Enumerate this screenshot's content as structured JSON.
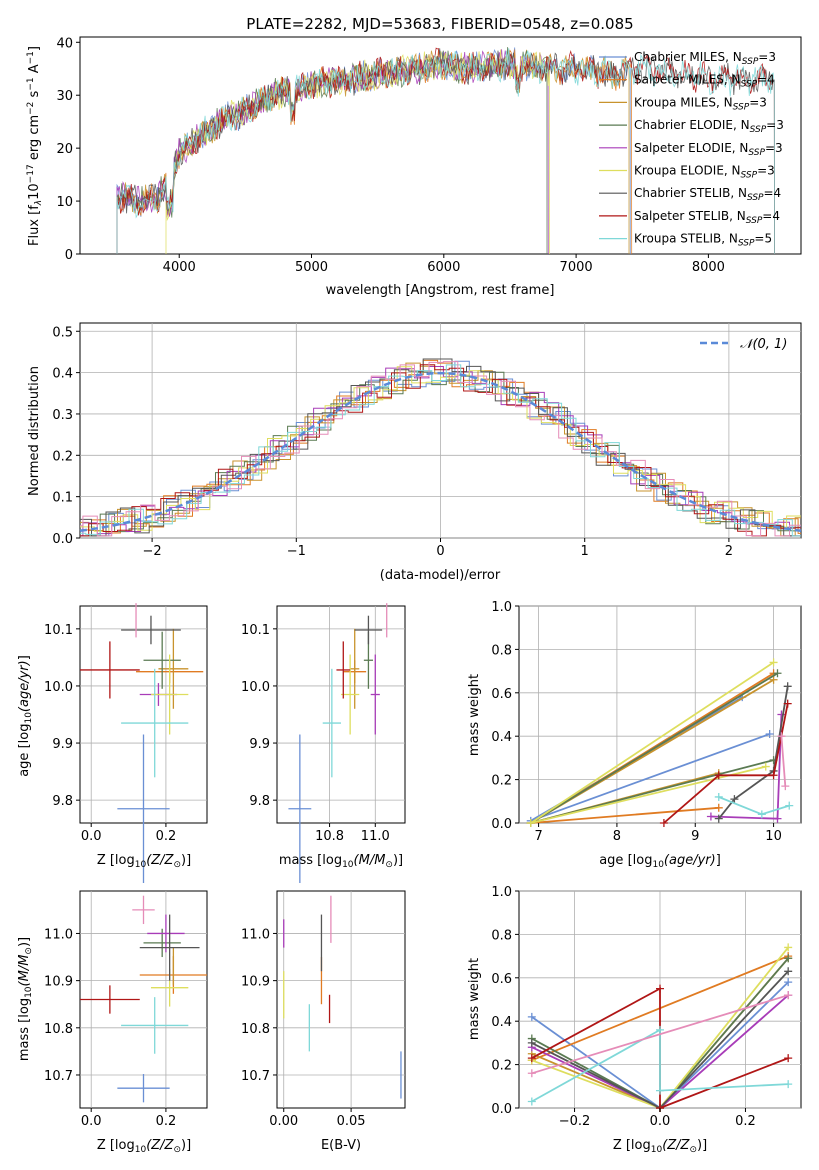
{
  "title": "PLATE=2282, MJD=53683, FIBERID=0548, z=0.085",
  "colors": {
    "Chabrier MILES": "#6a8fd4",
    "Salpeter MILES": "#e07b22",
    "Kroupa MILES": "#c8932d",
    "Chabrier ELODIE": "#5a7a52",
    "Salpeter ELODIE": "#a83cb8",
    "Kroupa ELODIE": "#dede5e",
    "Chabrier STELIB": "#555555",
    "Salpeter STELIB": "#b01616",
    "Kroupa STELIB": "#7fd8d8",
    "pink": "#e58cb8",
    "gauss": "#5a8ad8"
  },
  "legend_spectrum": [
    {
      "name": "Chabrier MILES, N",
      "sub": "SSP",
      "tail": "=3",
      "color": "#6a8fd4"
    },
    {
      "name": "Salpeter MILES, N",
      "sub": "SSP",
      "tail": "=4",
      "color": "#e07b22"
    },
    {
      "name": "Kroupa MILES, N",
      "sub": "SSP",
      "tail": "=3",
      "color": "#c8932d"
    },
    {
      "name": "Chabrier ELODIE, N",
      "sub": "SSP",
      "tail": "=3",
      "color": "#5a7a52"
    },
    {
      "name": "Salpeter ELODIE, N",
      "sub": "SSP",
      "tail": "=3",
      "color": "#a83cb8"
    },
    {
      "name": "Kroupa ELODIE, N",
      "sub": "SSP",
      "tail": "=3",
      "color": "#dede5e"
    },
    {
      "name": "Chabrier STELIB, N",
      "sub": "SSP",
      "tail": "=4",
      "color": "#555555"
    },
    {
      "name": "Salpeter STELIB, N",
      "sub": "SSP",
      "tail": "=4",
      "color": "#b01616"
    },
    {
      "name": "Kroupa STELIB, N",
      "sub": "SSP",
      "tail": "=5",
      "color": "#7fd8d8"
    }
  ],
  "labels": {
    "spec_x": "wavelength [Angstrom, rest frame]",
    "spec_y": "Flux [f",
    "resid_x": "(data-model)/error",
    "resid_y": "Normed distribution",
    "resid_legend": "𝒩(0, 1)",
    "z_axis": "Z [log",
    "age_axis": "age  [log",
    "mass_axis": "mass [log",
    "ebv_axis": "E(B-V)",
    "mw_axis": "mass weight"
  },
  "chart_data": [
    {
      "type": "line",
      "title": "PLATE=2282, MJD=53683, FIBERID=0548, z=0.085",
      "xlabel": "wavelength [Angstrom, rest frame]",
      "ylabel": "Flux [fλ 10^-17 erg cm^-2 s^-1 A^-1]",
      "xlim": [
        3250,
        8700
      ],
      "ylim": [
        0,
        41
      ],
      "xticks": [
        4000,
        5000,
        6000,
        7000,
        8000
      ],
      "yticks": [
        0,
        10,
        20,
        30,
        40
      ],
      "spectrum_knots": {
        "x": [
          3500,
          3700,
          3850,
          3900,
          4000,
          4100,
          4300,
          4500,
          4700,
          5000,
          5300,
          5500,
          5800,
          6000,
          6200,
          6500,
          6800,
          7000,
          7300,
          7500,
          7800,
          8000,
          8300,
          8500
        ],
        "y": [
          11,
          10,
          11,
          13,
          19,
          21,
          25,
          27,
          30,
          32,
          33,
          34,
          35,
          36,
          35,
          36,
          35,
          35,
          34,
          35,
          34,
          33,
          33,
          33
        ]
      },
      "series_cutoffs": {
        "Chabrier MILES": [
          3530,
          7410
        ],
        "Salpeter MILES": [
          3530,
          7420
        ],
        "Kroupa MILES": [
          3530,
          7400
        ],
        "Chabrier ELODIE": [
          3530,
          6780
        ],
        "Salpeter ELODIE": [
          3530,
          6790
        ],
        "Kroupa ELODIE": [
          3900,
          6800
        ],
        "Chabrier STELIB": [
          3530,
          8500
        ],
        "Salpeter STELIB": [
          3530,
          8500
        ],
        "Kroupa STELIB": [
          3530,
          8500
        ]
      },
      "legend": "upper right"
    },
    {
      "type": "bar",
      "subtype": "step-histogram",
      "xlabel": "(data-model)/error",
      "ylabel": "Normed distribution",
      "xlim": [
        -2.5,
        2.5
      ],
      "ylim": [
        0,
        0.52
      ],
      "xticks": [
        -2,
        -1,
        0,
        1,
        2
      ],
      "yticks": [
        0.0,
        0.1,
        0.2,
        0.3,
        0.4,
        0.5
      ],
      "grid": true,
      "reference": {
        "name": "𝒩(0, 1)",
        "mean": 0,
        "sigma": 1
      },
      "legend": "upper right"
    },
    {
      "type": "scatter",
      "subtype": "errorbar",
      "xlabel": "Z [log10(Z/Z⊙)]",
      "ylabel": "age  [log10(age/yr)]",
      "xlim": [
        -0.03,
        0.31
      ],
      "ylim": [
        9.76,
        10.14
      ],
      "xticks": [
        0.0,
        0.2
      ],
      "yticks": [
        9.8,
        9.9,
        10.0,
        10.1
      ],
      "points": [
        {
          "series": "Chabrier MILES",
          "x": 0.14,
          "y": 9.785,
          "xerr": 0.07,
          "yerr": 0.13
        },
        {
          "series": "Salpeter MILES",
          "x": 0.21,
          "y": 10.025,
          "xerr": 0.09,
          "yerr": 0.02
        },
        {
          "series": "Kroupa MILES",
          "x": 0.22,
          "y": 10.03,
          "xerr": 0.04,
          "yerr": 0.07
        },
        {
          "series": "Chabrier ELODIE",
          "x": 0.19,
          "y": 10.045,
          "xerr": 0.05,
          "yerr": 0.05
        },
        {
          "series": "Salpeter ELODIE",
          "x": 0.18,
          "y": 9.985,
          "xerr": 0.05,
          "yerr": 0.02
        },
        {
          "series": "Kroupa ELODIE",
          "x": 0.21,
          "y": 9.985,
          "xerr": 0.05,
          "yerr": 0.07
        },
        {
          "series": "Chabrier STELIB",
          "x": 0.16,
          "y": 10.098,
          "xerr": 0.08,
          "yerr": 0.025
        },
        {
          "series": "Salpeter STELIB",
          "x": 0.05,
          "y": 10.028,
          "xerr": 0.08,
          "yerr": 0.05
        },
        {
          "series": "Kroupa STELIB",
          "x": 0.17,
          "y": 9.935,
          "xerr": 0.09,
          "yerr": 0.095
        },
        {
          "series": "pink",
          "x": 0.12,
          "y": 10.115,
          "xerr": 0.0,
          "yerr": 0.03
        }
      ]
    },
    {
      "type": "scatter",
      "subtype": "errorbar",
      "xlabel": "mass [log10(M/M⊙)]",
      "ylabel": "",
      "xlim": [
        10.57,
        11.13
      ],
      "ylim": [
        9.76,
        10.14
      ],
      "xticks": [
        10.8,
        11.0
      ],
      "yticks": [
        9.8,
        9.9,
        10.0,
        10.1
      ],
      "points": [
        {
          "series": "Chabrier MILES",
          "x": 10.67,
          "y": 9.785,
          "xerr": 0.05,
          "yerr": 0.13
        },
        {
          "series": "Salpeter MILES",
          "x": 10.91,
          "y": 10.025,
          "xerr": 0.05,
          "yerr": 0.02
        },
        {
          "series": "Kroupa MILES",
          "x": 10.91,
          "y": 10.03,
          "xerr": 0.02,
          "yerr": 0.07
        },
        {
          "series": "Chabrier ELODIE",
          "x": 10.97,
          "y": 10.045,
          "xerr": 0.02,
          "yerr": 0.05
        },
        {
          "series": "Salpeter ELODIE",
          "x": 11.0,
          "y": 9.985,
          "xerr": 0.02,
          "yerr": 0.07
        },
        {
          "series": "Kroupa ELODIE",
          "x": 10.89,
          "y": 9.985,
          "xerr": 0.04,
          "yerr": 0.07
        },
        {
          "series": "Chabrier STELIB",
          "x": 10.97,
          "y": 10.098,
          "xerr": 0.06,
          "yerr": 0.025
        },
        {
          "series": "Salpeter STELIB",
          "x": 10.86,
          "y": 10.028,
          "xerr": 0.03,
          "yerr": 0.05
        },
        {
          "series": "Kroupa STELIB",
          "x": 10.81,
          "y": 9.935,
          "xerr": 0.04,
          "yerr": 0.095
        },
        {
          "series": "pink",
          "x": 11.05,
          "y": 10.115,
          "xerr": 0.0,
          "yerr": 0.03
        }
      ]
    },
    {
      "type": "line",
      "xlabel": "age  [log10(age/yr)]",
      "ylabel": "mass weight",
      "xlim": [
        6.75,
        10.35
      ],
      "ylim": [
        0,
        1
      ],
      "xticks": [
        7,
        8,
        9,
        10
      ],
      "yticks": [
        0.0,
        0.2,
        0.4,
        0.6,
        0.8,
        1.0
      ],
      "grid": true,
      "series": [
        {
          "name": "Chabrier MILES",
          "x": [
            9.6,
            6.9,
            9.95
          ],
          "y": [
            0.58,
            0.01,
            0.41
          ]
        },
        {
          "name": "Salpeter MILES",
          "x": [
            9.3,
            6.9,
            10.0
          ],
          "y": [
            0.07,
            0.0,
            0.69
          ]
        },
        {
          "name": "Kroupa MILES",
          "x": [
            9.3,
            6.9,
            10.0
          ],
          "y": [
            0.23,
            0.0,
            0.66
          ]
        },
        {
          "name": "Chabrier ELODIE",
          "x": [
            10.0,
            6.9,
            10.05
          ],
          "y": [
            0.29,
            0.0,
            0.69
          ]
        },
        {
          "name": "Salpeter ELODIE",
          "x": [
            9.2,
            10.05,
            10.1
          ],
          "y": [
            0.03,
            0.02,
            0.5
          ]
        },
        {
          "name": "Kroupa ELODIE",
          "x": [
            9.9,
            6.9,
            10.0
          ],
          "y": [
            0.26,
            0.0,
            0.74
          ]
        },
        {
          "name": "Chabrier STELIB",
          "x": [
            9.3,
            9.5,
            10.0,
            10.18
          ],
          "y": [
            0.02,
            0.11,
            0.24,
            0.63
          ]
        },
        {
          "name": "Salpeter STELIB",
          "x": [
            8.6,
            9.3,
            10.0,
            10.18
          ],
          "y": [
            0.0,
            0.22,
            0.22,
            0.55
          ]
        },
        {
          "name": "Kroupa STELIB",
          "x": [
            10.2,
            9.85,
            9.3
          ],
          "y": [
            0.08,
            0.04,
            0.12
          ]
        },
        {
          "name": "pink",
          "x": [
            10.1,
            10.15
          ],
          "y": [
            0.4,
            0.17
          ]
        }
      ]
    },
    {
      "type": "scatter",
      "subtype": "errorbar",
      "xlabel": "Z [log10(Z/Z⊙)]",
      "ylabel": "mass [log10(M/M⊙)]",
      "xlim": [
        -0.03,
        0.31
      ],
      "ylim": [
        10.63,
        11.09
      ],
      "xticks": [
        0.0,
        0.2
      ],
      "yticks": [
        10.7,
        10.8,
        10.9,
        11.0
      ],
      "points": [
        {
          "series": "Chabrier MILES",
          "x": 0.14,
          "y": 10.672,
          "xerr": 0.07,
          "yerr": 0.03
        },
        {
          "series": "Salpeter MILES",
          "x": 0.22,
          "y": 10.912,
          "xerr": 0.09,
          "yerr": 0.04
        },
        {
          "series": "Kroupa MILES",
          "x": 0.22,
          "y": 10.93,
          "xerr": 0.0,
          "yerr": 0.04
        },
        {
          "series": "Chabrier ELODIE",
          "x": 0.19,
          "y": 10.98,
          "xerr": 0.05,
          "yerr": 0.03
        },
        {
          "series": "Salpeter ELODIE",
          "x": 0.2,
          "y": 11.0,
          "xerr": 0.05,
          "yerr": 0.04
        },
        {
          "series": "Kroupa ELODIE",
          "x": 0.21,
          "y": 10.885,
          "xerr": 0.05,
          "yerr": 0.04
        },
        {
          "series": "Chabrier STELIB",
          "x": 0.21,
          "y": 10.97,
          "xerr": 0.08,
          "yerr": 0.07
        },
        {
          "series": "Salpeter STELIB",
          "x": 0.05,
          "y": 10.86,
          "xerr": 0.08,
          "yerr": 0.03
        },
        {
          "series": "Kroupa STELIB",
          "x": 0.17,
          "y": 10.805,
          "xerr": 0.09,
          "yerr": 0.06
        },
        {
          "series": "pink",
          "x": 0.14,
          "y": 11.05,
          "xerr": 0.03,
          "yerr": 0.03
        }
      ]
    },
    {
      "type": "scatter",
      "subtype": "errorbar",
      "xlabel": "E(B-V)",
      "ylabel": "",
      "xlim": [
        -0.005,
        0.09
      ],
      "ylim": [
        10.63,
        11.09
      ],
      "xticks": [
        0.0,
        0.05
      ],
      "yticks": [
        10.7,
        10.8,
        10.9,
        11.0
      ],
      "points": [
        {
          "series": "Chabrier MILES",
          "x": 0.087,
          "y": 10.7,
          "xerr": 0,
          "yerr": 0.05
        },
        {
          "series": "Salpeter MILES",
          "x": 0.028,
          "y": 10.9,
          "xerr": 0,
          "yerr": 0.05
        },
        {
          "series": "Salpeter ELODIE",
          "x": 0.0,
          "y": 11.0,
          "xerr": 0,
          "yerr": 0.03
        },
        {
          "series": "Kroupa ELODIE",
          "x": 0.0,
          "y": 10.87,
          "xerr": 0,
          "yerr": 0.05
        },
        {
          "series": "Chabrier STELIB",
          "x": 0.028,
          "y": 10.98,
          "xerr": 0,
          "yerr": 0.06
        },
        {
          "series": "Salpeter STELIB",
          "x": 0.034,
          "y": 10.84,
          "xerr": 0,
          "yerr": 0.03
        },
        {
          "series": "Kroupa STELIB",
          "x": 0.019,
          "y": 10.8,
          "xerr": 0,
          "yerr": 0.05
        },
        {
          "series": "pink",
          "x": 0.035,
          "y": 11.03,
          "xerr": 0,
          "yerr": 0.05
        }
      ]
    },
    {
      "type": "line",
      "xlabel": "Z [log10(Z/Z⊙)]",
      "ylabel": "mass weight",
      "xlim": [
        -0.33,
        0.33
      ],
      "ylim": [
        0,
        1
      ],
      "xticks": [
        -0.2,
        0.0,
        0.2
      ],
      "yticks": [
        0.0,
        0.2,
        0.4,
        0.6,
        0.8,
        1.0
      ],
      "grid": true,
      "series": [
        {
          "name": "Chabrier MILES",
          "x": [
            -0.3,
            0.0,
            0.3
          ],
          "y": [
            0.42,
            0.0,
            0.58
          ]
        },
        {
          "name": "Salpeter MILES",
          "x": [
            -0.3,
            0.3
          ],
          "y": [
            0.22,
            0.7
          ]
        },
        {
          "name": "Kroupa MILES",
          "x": [
            -0.3,
            0.0,
            0.3
          ],
          "y": [
            0.25,
            0.0,
            0.69
          ]
        },
        {
          "name": "Chabrier ELODIE",
          "x": [
            -0.3,
            0.0,
            0.3
          ],
          "y": [
            0.32,
            0.0,
            0.69
          ]
        },
        {
          "name": "Salpeter ELODIE",
          "x": [
            -0.3,
            0.0,
            0.3
          ],
          "y": [
            0.28,
            0.0,
            0.52
          ]
        },
        {
          "name": "Kroupa ELODIE",
          "x": [
            -0.3,
            0.0,
            0.3
          ],
          "y": [
            0.22,
            0.0,
            0.74
          ]
        },
        {
          "name": "Chabrier STELIB",
          "x": [
            -0.3,
            0.0,
            0.3
          ],
          "y": [
            0.3,
            0.0,
            0.63
          ]
        },
        {
          "name": "Salpeter STELIB",
          "x": [
            -0.3,
            0.0,
            0.0,
            0.3
          ],
          "y": [
            0.23,
            0.55,
            0.0,
            0.23
          ]
        },
        {
          "name": "Kroupa STELIB",
          "x": [
            -0.3,
            0.0,
            0.0,
            0.3
          ],
          "y": [
            0.03,
            0.36,
            0.08,
            0.11
          ]
        },
        {
          "name": "pink",
          "x": [
            -0.3,
            0.3
          ],
          "y": [
            0.16,
            0.52
          ]
        }
      ]
    }
  ]
}
